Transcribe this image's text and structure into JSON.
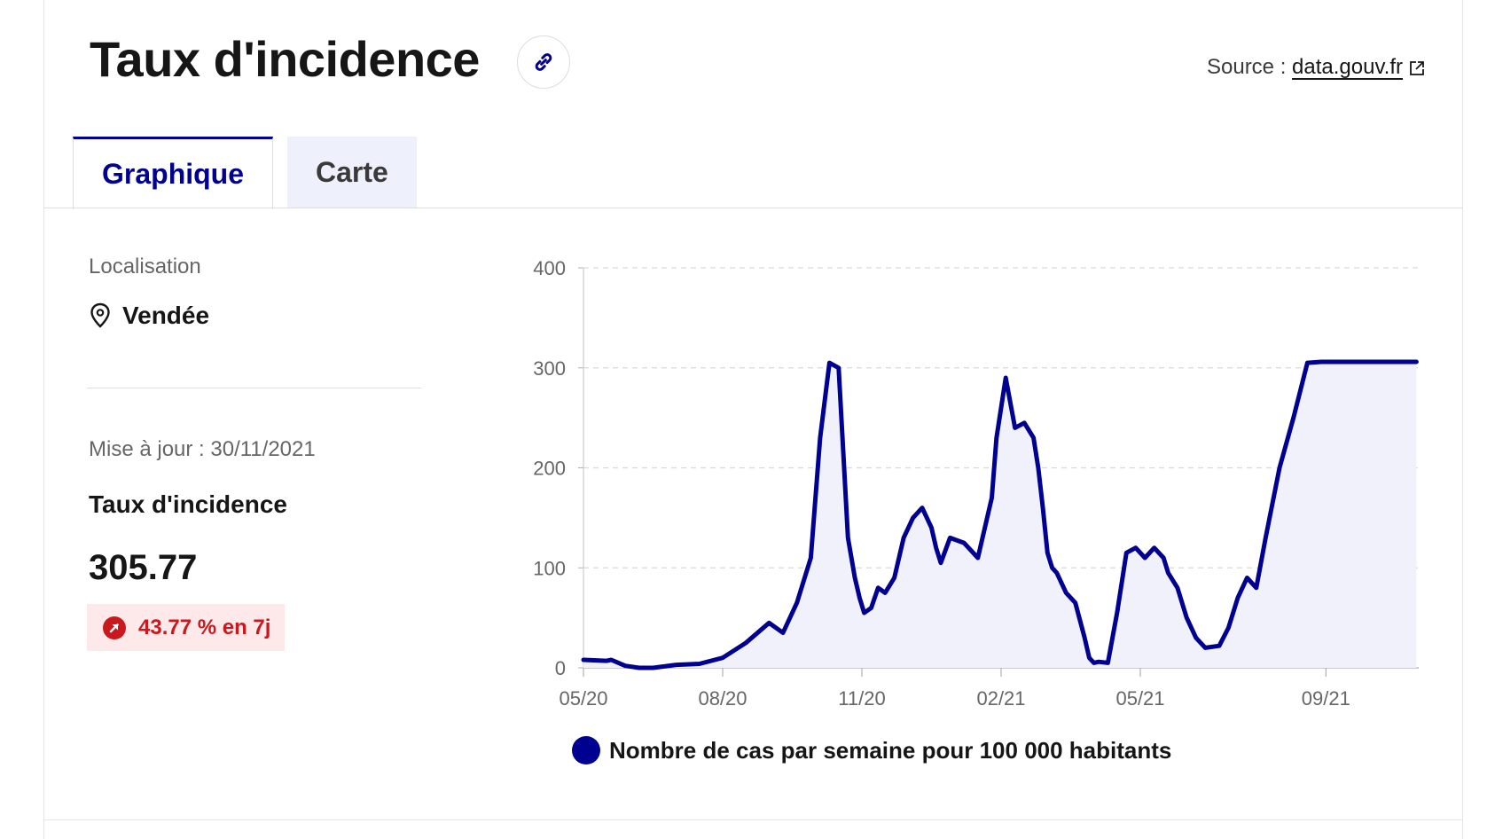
{
  "header": {
    "title": "Taux d'incidence",
    "source_prefix": "Source : ",
    "source_link": "data.gouv.fr"
  },
  "tabs": [
    {
      "label": "Graphique",
      "active": true
    },
    {
      "label": "Carte",
      "active": false
    }
  ],
  "sidebar": {
    "location_label": "Localisation",
    "location_value": "Vendée",
    "update_text": "Mise à jour : 30/11/2021",
    "metric_title": "Taux d'incidence",
    "metric_value": "305.77",
    "change_text": "43.77 % en 7j"
  },
  "colors": {
    "brand_blue": "#000091",
    "badge_red": "#c9191e",
    "badge_bg": "#fde9e9",
    "area_fill": "#f1f1fb"
  },
  "icons": {
    "link": "link-icon",
    "external": "external-link-icon",
    "location": "map-pin-icon",
    "trend": "arrow-up-right-icon"
  },
  "chart_data": {
    "type": "area",
    "x_tick_labels": [
      "05/20",
      "08/20",
      "11/20",
      "02/21",
      "05/21",
      "09/21"
    ],
    "x_ticks_month_index": [
      0,
      3,
      6,
      9,
      12,
      16
    ],
    "y_ticks": [
      0,
      100,
      200,
      300,
      400
    ],
    "ylim": [
      0,
      400
    ],
    "grid": "horizontal dashed",
    "legend": "bottom",
    "series": [
      {
        "name": "Nombre de cas par semaine pour 100 000 habitants",
        "x_unit": "months since May 2020",
        "x": [
          0.0,
          0.5,
          0.6,
          0.9,
          1.2,
          1.5,
          2.0,
          2.5,
          3.0,
          3.5,
          4.0,
          4.3,
          4.6,
          4.9,
          5.1,
          5.3,
          5.5,
          5.7,
          5.85,
          5.95,
          6.05,
          6.2,
          6.35,
          6.5,
          6.7,
          6.9,
          7.1,
          7.3,
          7.5,
          7.6,
          7.7,
          7.9,
          8.2,
          8.5,
          8.8,
          8.9,
          9.1,
          9.3,
          9.5,
          9.7,
          9.8,
          9.9,
          10.0,
          10.1,
          10.2,
          10.4,
          10.6,
          10.8,
          10.9,
          11.0,
          11.1,
          11.3,
          11.5,
          11.7,
          11.9,
          12.1,
          12.3,
          12.5,
          12.6,
          12.8,
          13.0,
          13.2,
          13.4,
          13.7,
          13.9,
          14.1,
          14.3,
          14.5,
          14.7,
          15.0,
          15.3,
          15.6,
          15.9,
          16.2,
          16.5,
          16.8,
          17.0,
          17.2,
          17.4,
          17.5,
          17.6,
          17.7,
          17.9,
          17.95
        ],
        "values": [
          8,
          7,
          8,
          2,
          0,
          0,
          3,
          4,
          10,
          25,
          45,
          35,
          65,
          110,
          230,
          305,
          300,
          130,
          90,
          70,
          55,
          60,
          80,
          75,
          90,
          130,
          150,
          160,
          140,
          120,
          105,
          130,
          125,
          110,
          170,
          230,
          290,
          240,
          245,
          230,
          200,
          160,
          115,
          100,
          95,
          75,
          65,
          30,
          10,
          5,
          6,
          5,
          55,
          115,
          120,
          110,
          120,
          110,
          95,
          80,
          50,
          30,
          20,
          22,
          40,
          70,
          90,
          80,
          130,
          200,
          250,
          305,
          306,
          306,
          306,
          306,
          306,
          306,
          306,
          306,
          306,
          306,
          306,
          306
        ]
      }
    ]
  }
}
